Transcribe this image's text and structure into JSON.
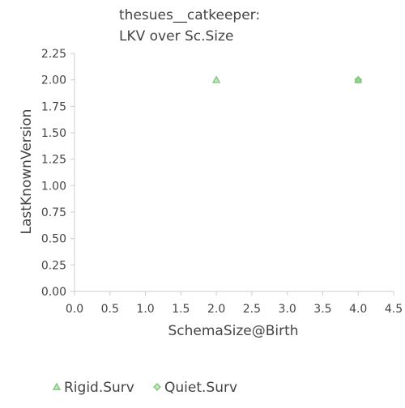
{
  "chart_data": {
    "type": "scatter",
    "title_lines": [
      "thesues__catkeeper:",
      "LKV over Sc.Size"
    ],
    "xlabel": "SchemaSize@Birth",
    "ylabel": "LastKnownVersion",
    "xlim": [
      0,
      4.5
    ],
    "ylim": [
      0,
      2.25
    ],
    "x_ticks": [
      "0.0",
      "0.5",
      "1.0",
      "1.5",
      "2.0",
      "2.5",
      "3.0",
      "3.5",
      "4.0",
      "4.5"
    ],
    "y_ticks": [
      "0.00",
      "0.25",
      "0.50",
      "0.75",
      "1.00",
      "1.25",
      "1.50",
      "1.75",
      "2.00",
      "2.25"
    ],
    "grid": false,
    "legend_position": "bottom",
    "series": [
      {
        "name": "Rigid.Surv",
        "marker": "triangle",
        "color": "#7cc576",
        "points": [
          {
            "x": 2.0,
            "y": 2.0
          },
          {
            "x": 4.0,
            "y": 2.0
          }
        ]
      },
      {
        "name": "Quiet.Surv",
        "marker": "diamond",
        "color": "#7cc576",
        "points": [
          {
            "x": 4.0,
            "y": 2.0
          }
        ]
      }
    ]
  }
}
